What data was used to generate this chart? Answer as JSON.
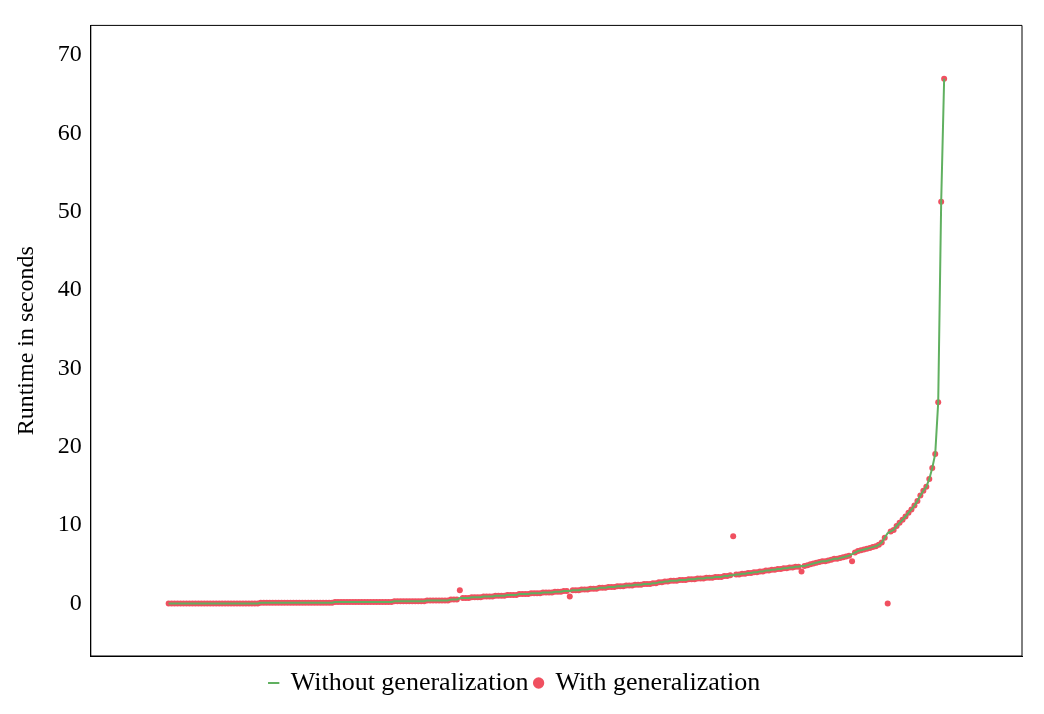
{
  "chart_data": {
    "type": "line",
    "ylabel": "Runtime in seconds",
    "categories": [
      null,
      null,
      null,
      null,
      null,
      null,
      null,
      null,
      null,
      null,
      null,
      null,
      null,
      null,
      null,
      null,
      null,
      null,
      null,
      null,
      null,
      null,
      null,
      null,
      null,
      null,
      null,
      null,
      null,
      null,
      null,
      null,
      null,
      null,
      null,
      null,
      null,
      null,
      null,
      null,
      null,
      null,
      null,
      null,
      null,
      null,
      null,
      null,
      null,
      null,
      null,
      null,
      null,
      null,
      null,
      null,
      null,
      null,
      null,
      null,
      null,
      null,
      null,
      null,
      null,
      null,
      null,
      null,
      null,
      null,
      null,
      null,
      null,
      null,
      null,
      null,
      null,
      null,
      null,
      null,
      null,
      null,
      null,
      null,
      null,
      null,
      null,
      null,
      null,
      null,
      null,
      null,
      null,
      null,
      null,
      null,
      null,
      null,
      null,
      null,
      null,
      null,
      null,
      null,
      null,
      null,
      null,
      null,
      null,
      null,
      null,
      null,
      null,
      null,
      null,
      null,
      null,
      null,
      null,
      null,
      null,
      null,
      null,
      null,
      null,
      null,
      null,
      null,
      null,
      null,
      null,
      null,
      null,
      null,
      null,
      null,
      null,
      null,
      null,
      null,
      null,
      null,
      null,
      null,
      null,
      null,
      null,
      null,
      null,
      null,
      null,
      null,
      null,
      null,
      null,
      null,
      null,
      null,
      null,
      null,
      null,
      null,
      null,
      null,
      null,
      null,
      null,
      null,
      null,
      null,
      null,
      null,
      null,
      null,
      null,
      null,
      null,
      null,
      null,
      null,
      null,
      null,
      null,
      null,
      null,
      null,
      null,
      null,
      null,
      null,
      null,
      null,
      null,
      null,
      null,
      null,
      null,
      null,
      null,
      null,
      null,
      null,
      null,
      null,
      null,
      null,
      null,
      null,
      null,
      null,
      null,
      null,
      null,
      null,
      null,
      null,
      null,
      null,
      null,
      null,
      null,
      null,
      null,
      null,
      null,
      null,
      null,
      null,
      null,
      null,
      null,
      null,
      null,
      null,
      null,
      null,
      null,
      null,
      null,
      null,
      null,
      null,
      null,
      null,
      null,
      null,
      null,
      null,
      null,
      null,
      null,
      null,
      null,
      null,
      null,
      null,
      null,
      null,
      null,
      null,
      null,
      null
    ],
    "series": [
      {
        "name": "Without generalization",
        "type": "line",
        "color": "#60b060",
        "marker": "none",
        "values": [
          0,
          0,
          0,
          0,
          0,
          0,
          0,
          0,
          0,
          0,
          0,
          0,
          0,
          0,
          0,
          0,
          0,
          0,
          0,
          0,
          0,
          0,
          0,
          0,
          0,
          0,
          0,
          0,
          0,
          0,
          0,
          0.1,
          0.1,
          0.1,
          0.1,
          0.1,
          0.1,
          0.1,
          0.1,
          0.1,
          0.1,
          0.1,
          0.1,
          0.1,
          0.1,
          0.1,
          0.1,
          0.1,
          0.1,
          0.1,
          0.1,
          0.1,
          0.1,
          0.1,
          0.1,
          0.1,
          0.2,
          0.2,
          0.2,
          0.2,
          0.2,
          0.2,
          0.2,
          0.2,
          0.2,
          0.2,
          0.2,
          0.2,
          0.2,
          0.2,
          0.2,
          0.2,
          0.2,
          0.2,
          0.2,
          0.2,
          0.3,
          0.3,
          0.3,
          0.3,
          0.3,
          0.3,
          0.3,
          0.3,
          0.3,
          0.3,
          0.3,
          0.4,
          0.4,
          0.4,
          0.4,
          0.4,
          0.4,
          0.4,
          0.4,
          0.5,
          0.5,
          0.5,
          0.7,
          0.7,
          0.7,
          0.7,
          0.8,
          0.8,
          0.8,
          0.8,
          0.9,
          0.9,
          0.9,
          0.9,
          1.0,
          1.0,
          1.0,
          1.0,
          1.1,
          1.1,
          1.1,
          1.1,
          1.2,
          1.2,
          1.2,
          1.2,
          1.3,
          1.3,
          1.3,
          1.3,
          1.4,
          1.4,
          1.4,
          1.4,
          1.5,
          1.5,
          1.5,
          1.6,
          1.6,
          1.6,
          1.7,
          1.7,
          1.7,
          1.8,
          1.8,
          1.8,
          1.9,
          1.9,
          1.9,
          2.0,
          2.0,
          2.0,
          2.1,
          2.1,
          2.1,
          2.2,
          2.2,
          2.2,
          2.3,
          2.3,
          2.3,
          2.4,
          2.4,
          2.4,
          2.5,
          2.5,
          2.5,
          2.6,
          2.6,
          2.7,
          2.7,
          2.8,
          2.8,
          2.9,
          2.9,
          2.9,
          3.0,
          3.0,
          3.0,
          3.1,
          3.1,
          3.1,
          3.2,
          3.2,
          3.2,
          3.3,
          3.3,
          3.3,
          3.4,
          3.4,
          3.4,
          3.5,
          3.5,
          3.6,
          3.6,
          3.7,
          3.7,
          3.8,
          3.8,
          3.9,
          3.9,
          4.0,
          4.0,
          4.1,
          4.1,
          4.2,
          4.2,
          4.3,
          4.3,
          4.4,
          4.4,
          4.5,
          4.5,
          4.6,
          4.6,
          4.7,
          4.7,
          4.8,
          4.8,
          4.9,
          5.0,
          5.1,
          5.2,
          5.3,
          5.4,
          5.4,
          5.5,
          5.6,
          5.7,
          5.7,
          5.8,
          5.9,
          6.0,
          6.1,
          6.3,
          6.5,
          6.7,
          6.8,
          6.9,
          7.0,
          7.1,
          7.2,
          7.3,
          7.5,
          7.8,
          8.4,
          9.0,
          9.2,
          9.4,
          9.9,
          10.3,
          10.7,
          11.1,
          11.6,
          12.0,
          12.5,
          13.1,
          13.8,
          14.4,
          14.9,
          15.9,
          17.3,
          19.1,
          25.7,
          51.3,
          67
        ]
      },
      {
        "name": "With generalization",
        "type": "scatter",
        "color": "#f05060",
        "marker": "circle",
        "values": [
          0,
          0,
          0,
          0,
          0,
          0,
          0,
          0,
          0,
          0,
          0,
          0,
          0,
          0,
          0,
          0,
          0,
          0,
          0,
          0,
          0,
          0,
          0,
          0,
          0,
          0,
          0,
          0,
          0,
          0,
          0,
          0.1,
          0.1,
          0.1,
          0.1,
          0.1,
          0.1,
          0.1,
          0.1,
          0.1,
          0.1,
          0.1,
          0.1,
          0.1,
          0.1,
          0.1,
          0.1,
          0.1,
          0.1,
          0.1,
          0.1,
          0.1,
          0.1,
          0.1,
          0.1,
          0.1,
          0.2,
          0.2,
          0.2,
          0.2,
          0.2,
          0.2,
          0.2,
          0.2,
          0.2,
          0.2,
          0.2,
          0.2,
          0.2,
          0.2,
          0.2,
          0.2,
          0.2,
          0.2,
          0.2,
          0.2,
          0.3,
          0.3,
          0.3,
          0.3,
          0.3,
          0.3,
          0.3,
          0.3,
          0.3,
          0.3,
          0.3,
          0.4,
          0.4,
          0.4,
          0.4,
          0.4,
          0.4,
          0.4,
          0.4,
          0.5,
          0.5,
          0.5,
          1.7,
          0.7,
          0.7,
          0.7,
          0.8,
          0.8,
          0.8,
          0.8,
          0.9,
          0.9,
          0.9,
          0.9,
          1.0,
          1.0,
          1.0,
          1.0,
          1.1,
          1.1,
          1.1,
          1.1,
          1.2,
          1.2,
          1.2,
          1.2,
          1.3,
          1.3,
          1.3,
          1.3,
          1.4,
          1.4,
          1.4,
          1.4,
          1.5,
          1.5,
          1.5,
          1.6,
          1.6,
          0.9,
          1.7,
          1.7,
          1.7,
          1.8,
          1.8,
          1.8,
          1.9,
          1.9,
          1.9,
          2.0,
          2.0,
          2.0,
          2.1,
          2.1,
          2.1,
          2.2,
          2.2,
          2.2,
          2.3,
          2.3,
          2.3,
          2.4,
          2.4,
          2.4,
          2.5,
          2.5,
          2.5,
          2.6,
          2.6,
          2.7,
          2.7,
          2.8,
          2.8,
          2.9,
          2.9,
          2.9,
          3.0,
          3.0,
          3.0,
          3.1,
          3.1,
          3.1,
          3.2,
          3.2,
          3.2,
          3.3,
          3.3,
          3.3,
          3.4,
          3.4,
          3.4,
          3.5,
          3.5,
          3.6,
          8.6,
          3.7,
          3.7,
          3.8,
          3.8,
          3.9,
          3.9,
          4.0,
          4.0,
          4.1,
          4.1,
          4.2,
          4.2,
          4.3,
          4.3,
          4.4,
          4.4,
          4.5,
          4.5,
          4.6,
          4.6,
          4.7,
          4.7,
          4.1,
          4.8,
          4.9,
          5.0,
          5.1,
          5.2,
          5.3,
          5.4,
          5.4,
          5.5,
          5.6,
          5.7,
          5.7,
          5.8,
          5.9,
          6.0,
          6.1,
          5.4,
          6.5,
          6.7,
          6.8,
          6.9,
          7.0,
          7.1,
          7.2,
          7.3,
          7.5,
          7.8,
          8.4,
          0,
          9.2,
          9.4,
          9.9,
          10.3,
          10.7,
          11.1,
          11.6,
          12.0,
          12.5,
          13.1,
          13.8,
          14.4,
          14.9,
          15.9,
          17.3,
          19.1,
          25.7,
          51.3,
          67
        ]
      }
    ],
    "ylim": [
      -6.7,
      73.8
    ],
    "yticks": [
      0,
      10,
      20,
      30,
      40,
      50,
      60,
      70
    ],
    "grid": false,
    "legend": "bottom"
  }
}
